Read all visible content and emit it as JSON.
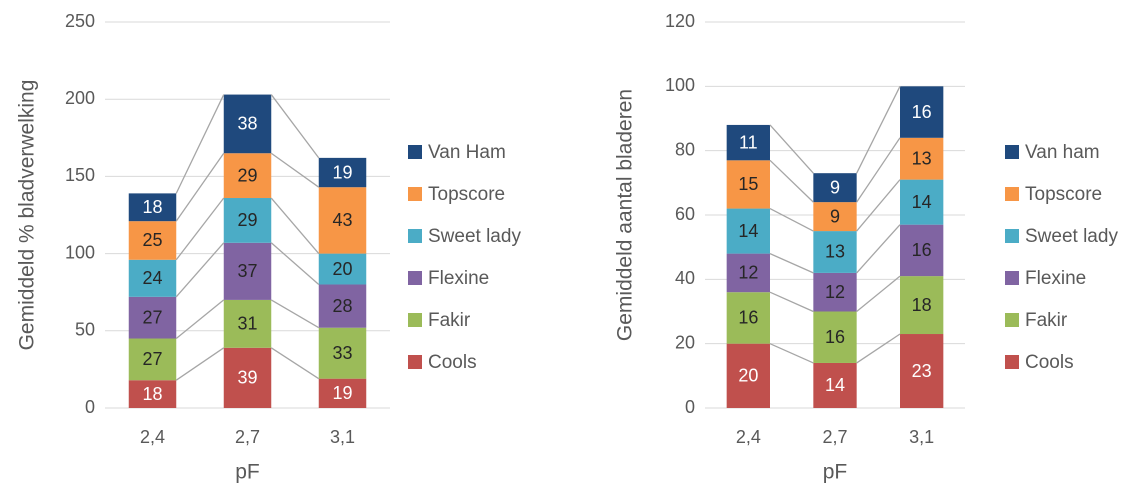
{
  "chart_data": [
    {
      "type": "stacked_bar",
      "xlabel": "pF",
      "ylabel": "Gemiddeld % bladverwelking",
      "categories": [
        "2,4",
        "2,7",
        "3,1"
      ],
      "ylim": [
        0,
        250
      ],
      "yticks": [
        0,
        50,
        100,
        150,
        200,
        250
      ],
      "grid": true,
      "series_lines": true,
      "legend": "right",
      "series": [
        {
          "name": "Cools",
          "color": "#c0504d",
          "label_color": "#ffffff",
          "values": [
            18,
            39,
            19
          ]
        },
        {
          "name": "Fakir",
          "color": "#9bbb59",
          "label_color": "#262626",
          "values": [
            27,
            31,
            33
          ]
        },
        {
          "name": "Flexine",
          "color": "#8064a2",
          "label_color": "#262626",
          "values": [
            27,
            37,
            28
          ]
        },
        {
          "name": "Sweet lady",
          "color": "#4bacc6",
          "label_color": "#262626",
          "values": [
            24,
            29,
            20
          ]
        },
        {
          "name": "Topscore",
          "color": "#f79646",
          "label_color": "#262626",
          "values": [
            25,
            29,
            43
          ]
        },
        {
          "name": "Van Ham",
          "color": "#1f497d",
          "label_color": "#ffffff",
          "values": [
            18,
            38,
            19
          ]
        }
      ]
    },
    {
      "type": "stacked_bar",
      "xlabel": "pF",
      "ylabel": "Gemiddeld aantal bladeren",
      "categories": [
        "2,4",
        "2,7",
        "3,1"
      ],
      "ylim": [
        0,
        120
      ],
      "yticks": [
        0,
        20,
        40,
        60,
        80,
        100,
        120
      ],
      "grid": true,
      "series_lines": true,
      "legend": "right",
      "series": [
        {
          "name": "Cools",
          "color": "#c0504d",
          "label_color": "#ffffff",
          "values": [
            20,
            14,
            23
          ]
        },
        {
          "name": "Fakir",
          "color": "#9bbb59",
          "label_color": "#262626",
          "values": [
            16,
            16,
            18
          ]
        },
        {
          "name": "Flexine",
          "color": "#8064a2",
          "label_color": "#262626",
          "values": [
            12,
            12,
            16
          ]
        },
        {
          "name": "Sweet lady",
          "color": "#4bacc6",
          "label_color": "#262626",
          "values": [
            14,
            13,
            14
          ]
        },
        {
          "name": "Topscore",
          "color": "#f79646",
          "label_color": "#262626",
          "values": [
            15,
            9,
            13
          ]
        },
        {
          "name": "Van ham",
          "color": "#1f497d",
          "label_color": "#ffffff",
          "values": [
            11,
            9,
            16
          ]
        }
      ]
    }
  ]
}
